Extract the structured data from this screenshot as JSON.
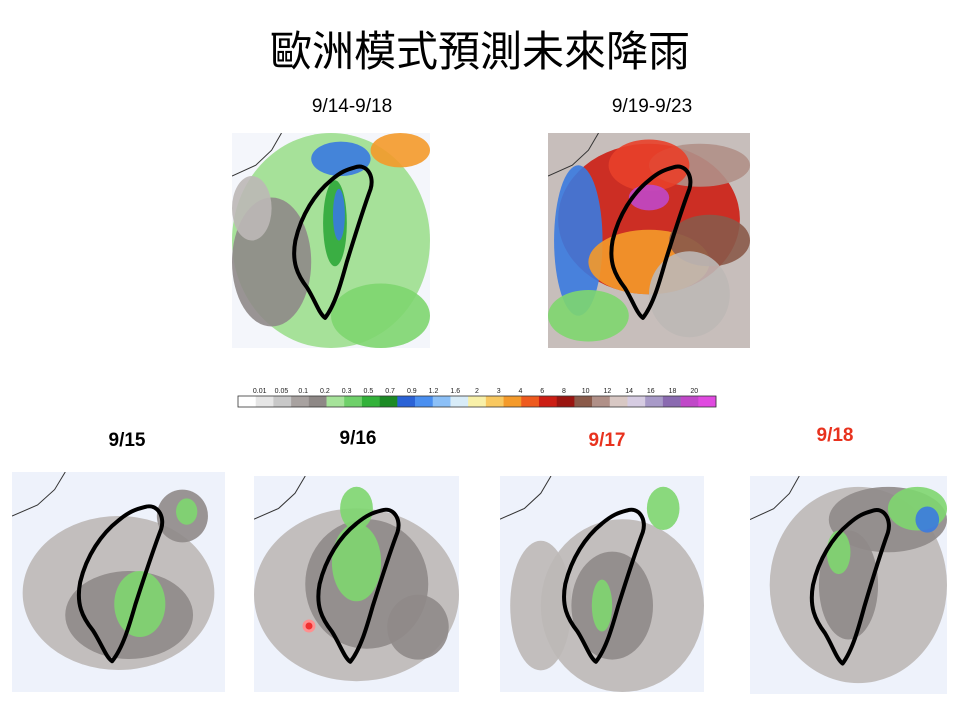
{
  "title": "歐洲模式預測未來降雨",
  "period_maps": [
    {
      "label": "9/14-9/18"
    },
    {
      "label": "9/19-9/23"
    }
  ],
  "colorbar": {
    "labels": [
      "0.01",
      "0.05",
      "0.1",
      "0.2",
      "0.3",
      "0.5",
      "0.7",
      "0.9",
      "1.2",
      "1.6",
      "2",
      "3",
      "4",
      "6",
      "8",
      "10",
      "12",
      "14",
      "16",
      "18",
      "20"
    ]
  },
  "daily_maps": [
    {
      "label": "9/15"
    },
    {
      "label": "9/16"
    },
    {
      "label": "9/17"
    },
    {
      "label": "9/18"
    }
  ]
}
